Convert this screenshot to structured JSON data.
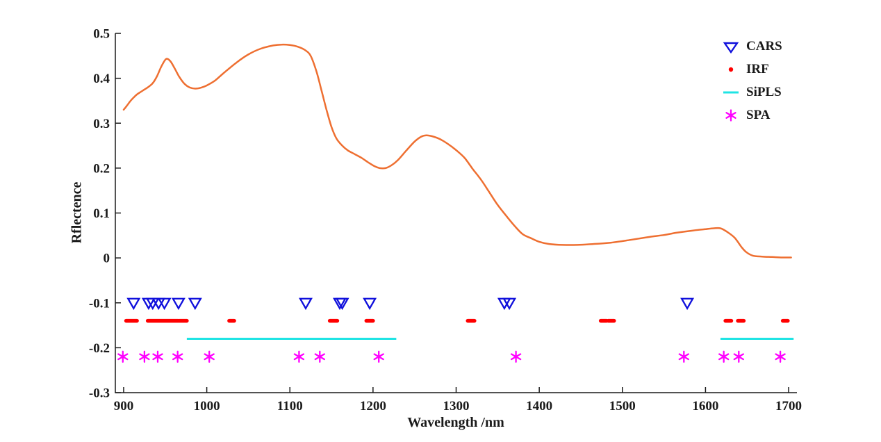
{
  "figure": {
    "background": "#ffffff",
    "axis_color": "#1a1a1a"
  },
  "chart_data": {
    "type": "line",
    "title": "",
    "xlabel": "Wavelength /nm",
    "ylabel": "Rflectence",
    "xlim": [
      890,
      1710
    ],
    "ylim": [
      -0.3,
      0.5
    ],
    "grid": false,
    "legend_position": "top-right-inside",
    "x_ticks": [
      900,
      1000,
      1100,
      1200,
      1300,
      1400,
      1500,
      1600,
      1700
    ],
    "x_tick_labels": [
      "900",
      "1000",
      "1100",
      "1200",
      "1300",
      "1400",
      "1500",
      "1600",
      "1700"
    ],
    "y_ticks": [
      -0.3,
      -0.2,
      -0.1,
      0,
      0.1,
      0.2,
      0.3,
      0.4,
      0.5
    ],
    "y_tick_labels": [
      "-0.3",
      "-0.2",
      "-0.1",
      "0",
      "0.1",
      "0.2",
      "0.3",
      "0.4",
      "0.5"
    ],
    "spectrum": {
      "name": "reflectance-spectrum",
      "color": "#EE6F31",
      "line_width": 2.5,
      "points": [
        [
          900,
          0.33
        ],
        [
          904,
          0.339
        ],
        [
          908,
          0.349
        ],
        [
          912,
          0.357
        ],
        [
          916,
          0.364
        ],
        [
          920,
          0.369
        ],
        [
          925,
          0.375
        ],
        [
          930,
          0.381
        ],
        [
          935,
          0.389
        ],
        [
          940,
          0.404
        ],
        [
          945,
          0.425
        ],
        [
          950,
          0.441
        ],
        [
          953,
          0.443
        ],
        [
          957,
          0.436
        ],
        [
          962,
          0.42
        ],
        [
          967,
          0.403
        ],
        [
          973,
          0.388
        ],
        [
          979,
          0.38
        ],
        [
          986,
          0.377
        ],
        [
          993,
          0.379
        ],
        [
          1000,
          0.384
        ],
        [
          1010,
          0.395
        ],
        [
          1020,
          0.411
        ],
        [
          1035,
          0.434
        ],
        [
          1050,
          0.453
        ],
        [
          1065,
          0.466
        ],
        [
          1080,
          0.473
        ],
        [
          1090,
          0.475
        ],
        [
          1100,
          0.474
        ],
        [
          1110,
          0.47
        ],
        [
          1118,
          0.463
        ],
        [
          1125,
          0.45
        ],
        [
          1132,
          0.415
        ],
        [
          1138,
          0.373
        ],
        [
          1144,
          0.33
        ],
        [
          1150,
          0.292
        ],
        [
          1156,
          0.266
        ],
        [
          1163,
          0.25
        ],
        [
          1170,
          0.239
        ],
        [
          1178,
          0.231
        ],
        [
          1186,
          0.223
        ],
        [
          1194,
          0.213
        ],
        [
          1202,
          0.204
        ],
        [
          1208,
          0.2
        ],
        [
          1215,
          0.2
        ],
        [
          1222,
          0.206
        ],
        [
          1230,
          0.218
        ],
        [
          1240,
          0.239
        ],
        [
          1250,
          0.259
        ],
        [
          1258,
          0.27
        ],
        [
          1264,
          0.273
        ],
        [
          1271,
          0.271
        ],
        [
          1280,
          0.265
        ],
        [
          1290,
          0.254
        ],
        [
          1300,
          0.24
        ],
        [
          1310,
          0.223
        ],
        [
          1320,
          0.198
        ],
        [
          1330,
          0.174
        ],
        [
          1340,
          0.146
        ],
        [
          1350,
          0.118
        ],
        [
          1361,
          0.092
        ],
        [
          1370,
          0.072
        ],
        [
          1380,
          0.053
        ],
        [
          1390,
          0.044
        ],
        [
          1400,
          0.036
        ],
        [
          1412,
          0.031
        ],
        [
          1428,
          0.029
        ],
        [
          1446,
          0.029
        ],
        [
          1465,
          0.031
        ],
        [
          1486,
          0.034
        ],
        [
          1509,
          0.04
        ],
        [
          1530,
          0.046
        ],
        [
          1550,
          0.051
        ],
        [
          1565,
          0.056
        ],
        [
          1585,
          0.061
        ],
        [
          1600,
          0.064
        ],
        [
          1610,
          0.066
        ],
        [
          1618,
          0.066
        ],
        [
          1626,
          0.058
        ],
        [
          1635,
          0.045
        ],
        [
          1643,
          0.025
        ],
        [
          1649,
          0.013
        ],
        [
          1657,
          0.005
        ],
        [
          1668,
          0.003
        ],
        [
          1680,
          0.002
        ],
        [
          1692,
          0.001
        ],
        [
          1703,
          0.001
        ]
      ]
    },
    "marker_series": [
      {
        "name": "CARS",
        "marker": "open-triangle-down",
        "color": "#1010DC",
        "y": -0.1,
        "wavelengths": [
          912,
          930,
          935,
          942,
          949,
          966,
          986,
          1119,
          1160,
          1163,
          1196,
          1358,
          1364,
          1578
        ]
      },
      {
        "name": "IRF",
        "marker": "dot",
        "color": "#FF0000",
        "y": -0.14,
        "segments": [
          [
            903,
            916
          ],
          [
            929,
            966
          ],
          [
            967,
            976
          ],
          [
            1027,
            1033
          ],
          [
            1148,
            1157
          ],
          [
            1192,
            1200
          ],
          [
            1314,
            1322
          ],
          [
            1474,
            1481
          ],
          [
            1483,
            1490
          ],
          [
            1624,
            1631
          ],
          [
            1639,
            1646
          ],
          [
            1693,
            1699
          ]
        ]
      },
      {
        "name": "SiPLS",
        "marker": "line",
        "color": "#1FE4E4",
        "y": -0.18,
        "segments": [
          [
            976,
            1228
          ],
          [
            1618,
            1706
          ]
        ]
      },
      {
        "name": "SPA",
        "marker": "asterisk",
        "color": "#FF00FF",
        "y": -0.22,
        "wavelengths": [
          899,
          925,
          941,
          965,
          1003,
          1111,
          1136,
          1207,
          1372,
          1574,
          1622,
          1640,
          1690
        ]
      }
    ],
    "legend": [
      {
        "label": "CARS"
      },
      {
        "label": "IRF"
      },
      {
        "label": "SiPLS"
      },
      {
        "label": "SPA"
      }
    ]
  }
}
